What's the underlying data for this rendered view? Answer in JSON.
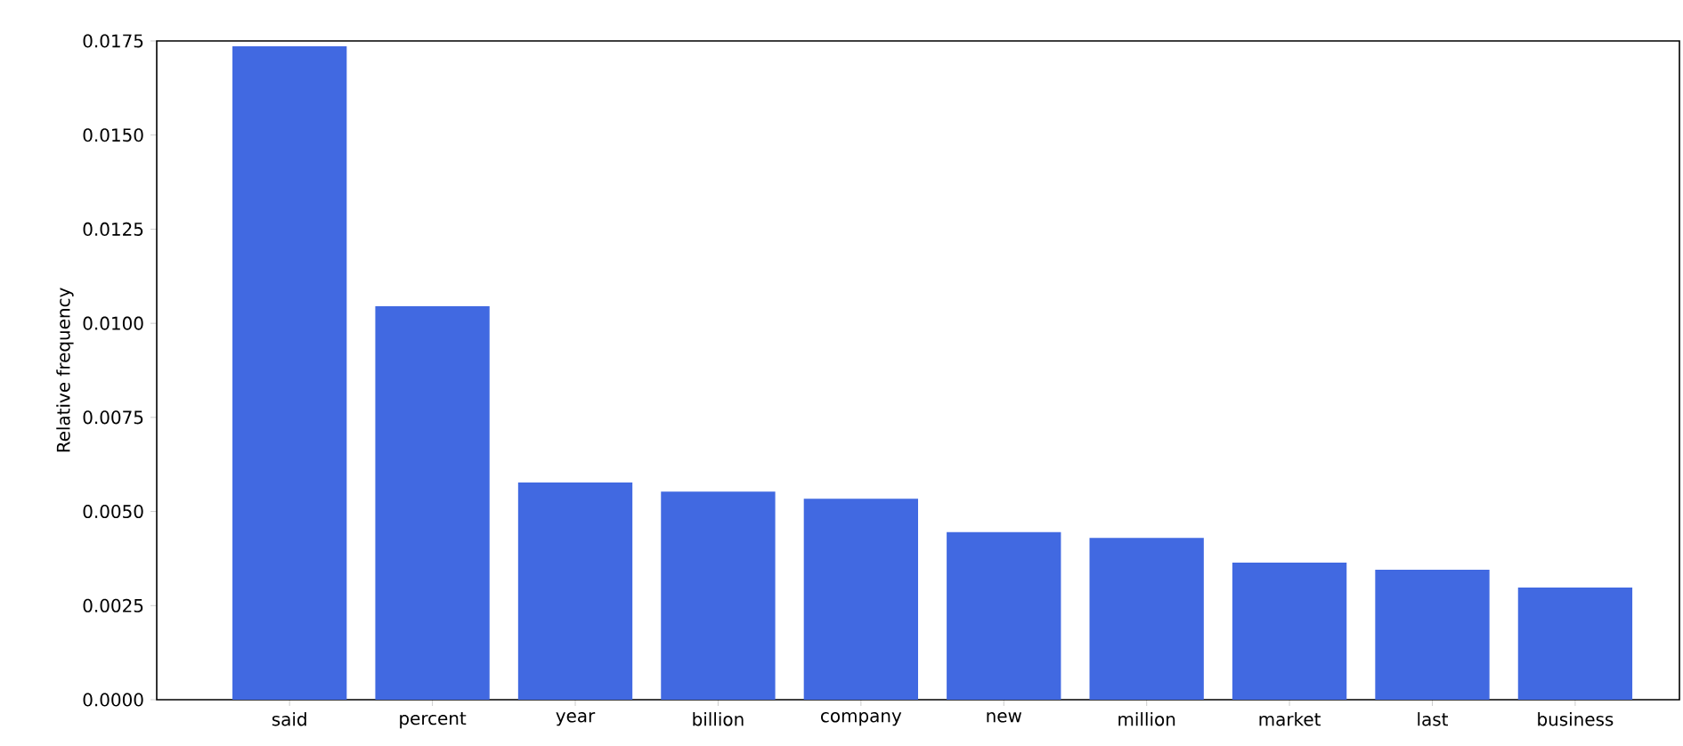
{
  "chart_data": {
    "type": "bar",
    "ylabel": "Relative frequency",
    "categories": [
      "said",
      "percent",
      "year",
      "billion",
      "company",
      "new",
      "million",
      "market",
      "last",
      "business"
    ],
    "values": [
      0.01736,
      0.01045,
      0.00577,
      0.00553,
      0.00534,
      0.00445,
      0.0043,
      0.00364,
      0.00345,
      0.00298
    ],
    "color": "#4169e1",
    "ylim": [
      0,
      0.0175
    ],
    "yticks": [
      {
        "value": 0,
        "label": "0.0000"
      },
      {
        "value": 0.0025,
        "label": "0.0025"
      },
      {
        "value": 0.005,
        "label": "0.0050"
      },
      {
        "value": 0.0075,
        "label": "0.0075"
      },
      {
        "value": 0.01,
        "label": "0.0100"
      },
      {
        "value": 0.0125,
        "label": "0.0125"
      },
      {
        "value": 0.015,
        "label": "0.0150"
      },
      {
        "value": 0.0175,
        "label": "0.0175"
      }
    ],
    "grid": false
  }
}
